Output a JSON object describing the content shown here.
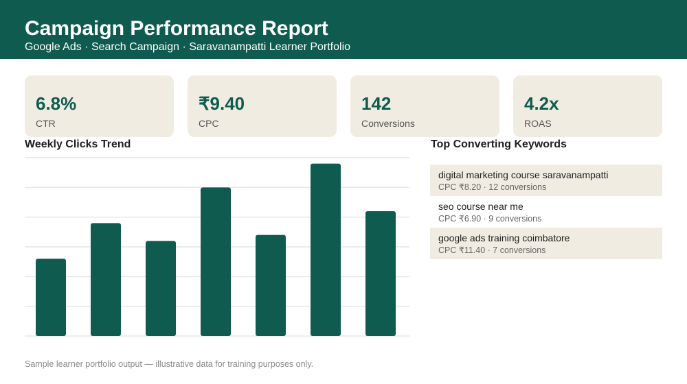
{
  "header": {
    "title": "Campaign Performance Report",
    "subtitle": "Google Ads · Search Campaign · Saravanampatti Learner Portfolio"
  },
  "kpis": [
    {
      "value": "6.8%",
      "label": "CTR"
    },
    {
      "value": "₹9.40",
      "label": "CPC"
    },
    {
      "value": "142",
      "label": "Conversions"
    },
    {
      "value": "4.2x",
      "label": "ROAS"
    }
  ],
  "chart_section": {
    "title": "Weekly Clicks Trend"
  },
  "keywords_section": {
    "title": "Top Converting Keywords",
    "rows": [
      {
        "keyword": "digital marketing course saravanampatti",
        "meta": "CPC ₹8.20  ·  12 conversions",
        "shaded": true
      },
      {
        "keyword": "seo course near me",
        "meta": "CPC ₹6.90  ·  9 conversions",
        "shaded": false
      },
      {
        "keyword": "google ads training coimbatore",
        "meta": "CPC ₹11.40  ·  7 conversions",
        "shaded": true
      }
    ]
  },
  "footer": {
    "note": "Sample learner portfolio output — illustrative data for training purposes only."
  },
  "colors": {
    "brand": "#0f5b4f",
    "card": "#f1ece2",
    "grid": "#e6e6e6"
  },
  "chart_data": {
    "type": "bar",
    "title": "Weekly Clicks Trend",
    "categories": [
      "",
      "",
      "",
      "",
      "",
      "",
      ""
    ],
    "values": [
      40,
      52,
      46,
      64,
      48,
      72,
      56
    ],
    "ylim": [
      14,
      74
    ],
    "grid": true,
    "gridlines": [
      14,
      24,
      34,
      44,
      54,
      64,
      74
    ],
    "xlabel": "",
    "ylabel": ""
  }
}
